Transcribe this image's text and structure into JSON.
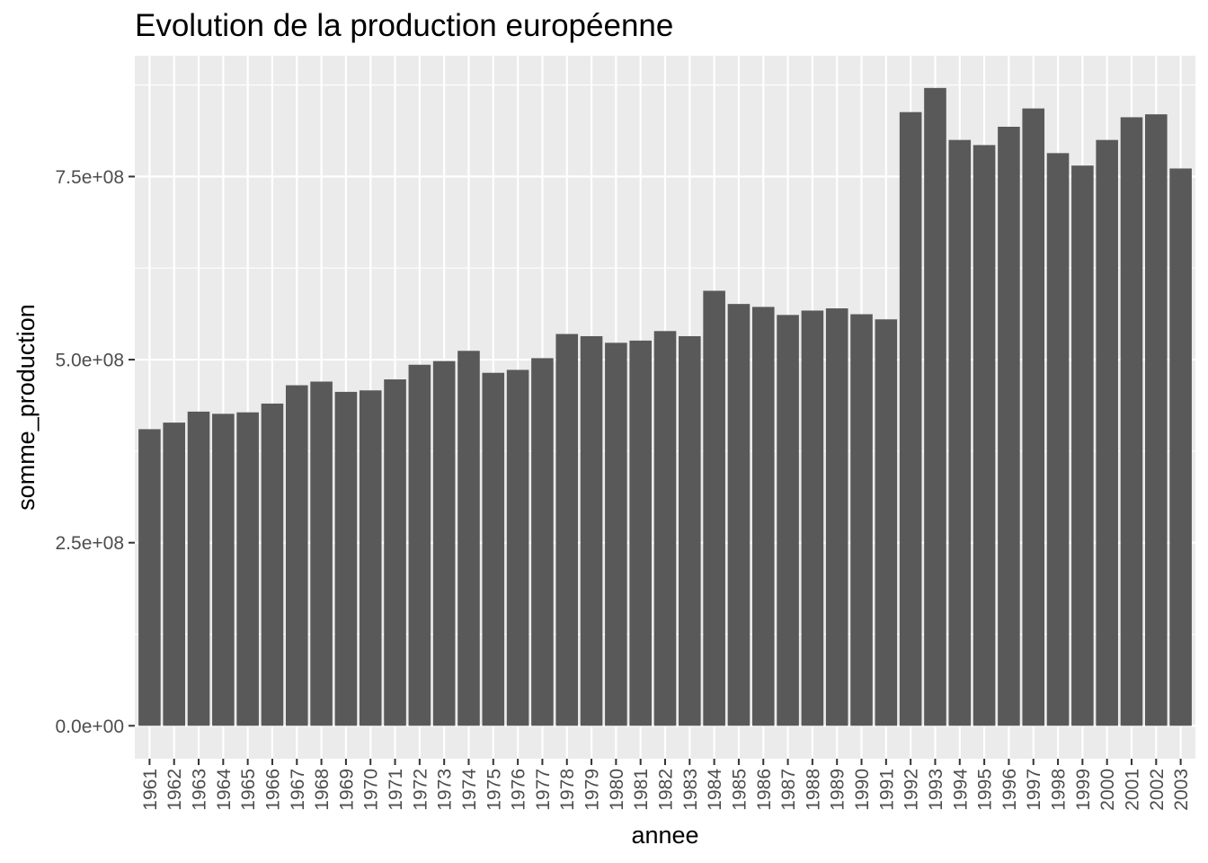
{
  "chart_data": {
    "type": "bar",
    "title": "Evolution de la production européenne",
    "xlabel": "annee",
    "ylabel": "somme_production",
    "ylim": [
      -45000000,
      915000000
    ],
    "yticks": [
      0,
      250000000,
      500000000,
      750000000
    ],
    "ytick_labels": [
      "0.0e+00",
      "2.5e+08",
      "5.0e+08",
      "7.5e+08"
    ],
    "grid": true,
    "colors": {
      "bar": "#595959",
      "panel": "#ebebeb",
      "grid": "#ffffff"
    },
    "categories": [
      "1961",
      "1962",
      "1963",
      "1964",
      "1965",
      "1966",
      "1967",
      "1968",
      "1969",
      "1970",
      "1971",
      "1972",
      "1973",
      "1974",
      "1975",
      "1976",
      "1977",
      "1978",
      "1979",
      "1980",
      "1981",
      "1982",
      "1983",
      "1984",
      "1985",
      "1986",
      "1987",
      "1988",
      "1989",
      "1990",
      "1991",
      "1992",
      "1993",
      "1994",
      "1995",
      "1996",
      "1997",
      "1998",
      "1999",
      "2000",
      "2001",
      "2002",
      "2003"
    ],
    "values": [
      405000000,
      414000000,
      429000000,
      426000000,
      428000000,
      440000000,
      465000000,
      470000000,
      456000000,
      458000000,
      473000000,
      493000000,
      498000000,
      512000000,
      482000000,
      486000000,
      502000000,
      535000000,
      532000000,
      523000000,
      526000000,
      539000000,
      532000000,
      594000000,
      576000000,
      572000000,
      561000000,
      567000000,
      570000000,
      562000000,
      555000000,
      838000000,
      871000000,
      800000000,
      793000000,
      818000000,
      843000000,
      782000000,
      765000000,
      800000000,
      831000000,
      835000000,
      761000000
    ]
  }
}
